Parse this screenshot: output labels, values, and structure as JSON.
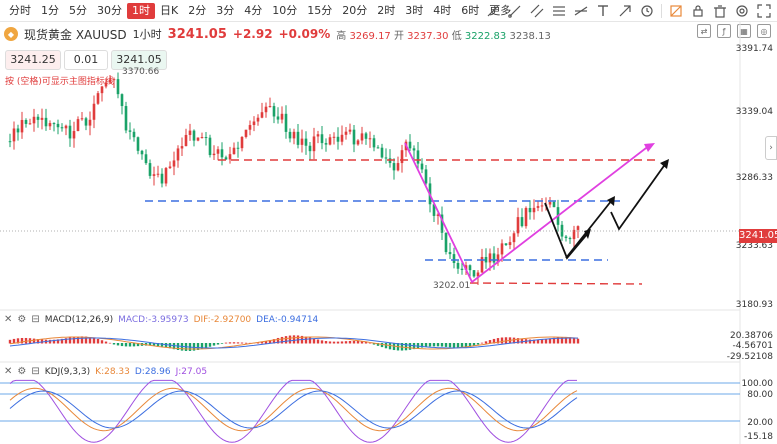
{
  "toolbar": {
    "intervals": [
      {
        "label": "分时",
        "active": false
      },
      {
        "label": "1分",
        "active": false
      },
      {
        "label": "5分",
        "active": false
      },
      {
        "label": "30分",
        "active": false
      },
      {
        "label": "1时",
        "active": true
      },
      {
        "label": "日K",
        "active": false
      },
      {
        "label": "2分",
        "active": false
      },
      {
        "label": "3分",
        "active": false
      },
      {
        "label": "4分",
        "active": false
      },
      {
        "label": "10分",
        "active": false
      },
      {
        "label": "15分",
        "active": false
      },
      {
        "label": "20分",
        "active": false
      },
      {
        "label": "2时",
        "active": false
      },
      {
        "label": "3时",
        "active": false
      },
      {
        "label": "4时",
        "active": false
      },
      {
        "label": "6时",
        "active": false
      },
      {
        "label": "更多",
        "active": false
      }
    ],
    "tools": [
      "trend-line-icon",
      "ray-icon",
      "channel-icon",
      "fib-icon",
      "horizontal-line-icon",
      "text-icon",
      "arrow-icon",
      "settings-icon",
      "eraser-icon",
      "trash-icon",
      "undo-icon",
      "redo-icon",
      "fullscreen-icon"
    ]
  },
  "header": {
    "symbol": "现货黄金 XAUUSD",
    "interval": "1小时",
    "price": "3241.05",
    "change": "+2.92",
    "change_pct": "+0.09%",
    "high_label": "高",
    "high": "3269.17",
    "open_label": "开",
    "open": "3237.30",
    "low_label": "低",
    "low": "3222.83",
    "close": "3238.13"
  },
  "trade": {
    "sell_price": "3241.25",
    "quantity": "0.01",
    "buy_price": "3241.05",
    "hint": "按 (空格)可显示主图指标线"
  },
  "price_axis": {
    "labels": [
      "3391.74",
      "3339.04",
      "3286.33",
      "3233.63",
      "3180.93"
    ],
    "current_price": "3241.05",
    "high_mark": "3370.66",
    "low_mark": "3202.01"
  },
  "macd": {
    "name": "MACD(12,26,9)",
    "macd": "MACD:-3.95973",
    "dif": "DIF:-2.92700",
    "dea": "DEA:-0.94714",
    "axis": [
      "20.38706",
      "-4.56701",
      "-29.52108"
    ]
  },
  "kdj": {
    "name": "KDJ(9,3,3)",
    "k": "K:28.33",
    "d": "D:28.96",
    "j": "J:27.05",
    "axis": [
      "100.00",
      "80.00",
      "20.00",
      "-15.18"
    ]
  },
  "colors": {
    "up": "#e03c3c",
    "down": "#1aa268",
    "accent": "#e03c3c",
    "magenta": "#e040e0",
    "blue_dash": "#3c6ee0",
    "red_dash": "#e03c3c"
  }
}
